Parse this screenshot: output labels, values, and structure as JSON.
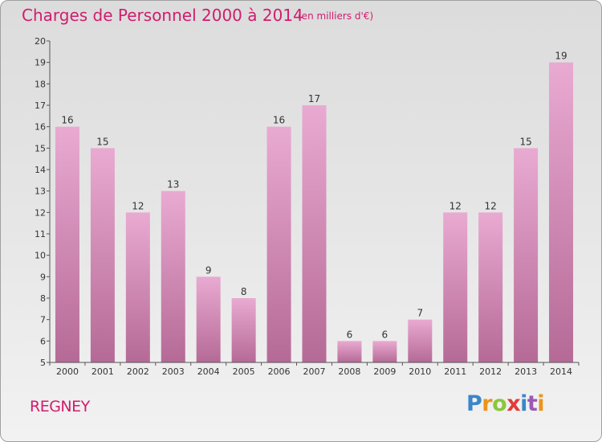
{
  "header": {
    "title": "Charges de Personnel 2000 à 2014",
    "subtitle": "(en milliers d'€)"
  },
  "footer": {
    "commune": "REGNEY",
    "logo": "Proxiti"
  },
  "colors": {
    "title": "#d11c6e",
    "bar_light": "#e9aad2",
    "bar_dark": "#b56a96"
  },
  "chart_data": {
    "type": "bar",
    "categories": [
      "2000",
      "2001",
      "2002",
      "2003",
      "2004",
      "2005",
      "2006",
      "2007",
      "2008",
      "2009",
      "2010",
      "2011",
      "2012",
      "2013",
      "2014"
    ],
    "values": [
      16,
      15,
      12,
      13,
      9,
      8,
      16,
      17,
      6,
      6,
      7,
      12,
      12,
      15,
      19
    ],
    "ylim": [
      5,
      20
    ],
    "yticks": [
      5,
      6,
      7,
      8,
      9,
      10,
      11,
      12,
      13,
      14,
      15,
      16,
      17,
      18,
      19,
      20
    ],
    "grid": false,
    "legend": "none"
  }
}
